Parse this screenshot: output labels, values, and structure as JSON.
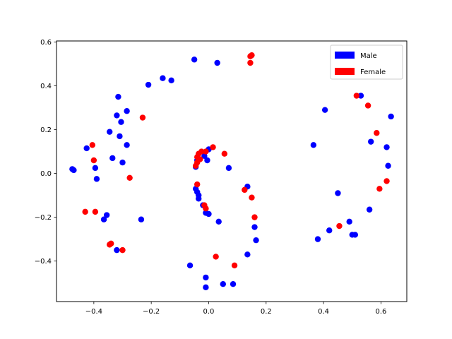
{
  "chart_data": {
    "type": "scatter",
    "title": "",
    "xlabel": "",
    "ylabel": "",
    "xlim": [
      -0.53,
      0.69
    ],
    "ylim": [
      -0.585,
      0.605
    ],
    "xticks": [
      -0.4,
      -0.2,
      0.0,
      0.2,
      0.4,
      0.6
    ],
    "xtick_labels": [
      "−0.4",
      "−0.2",
      "0.0",
      "0.2",
      "0.4",
      "0.6"
    ],
    "yticks": [
      -0.4,
      -0.2,
      0.0,
      0.2,
      0.4,
      0.6
    ],
    "ytick_labels": [
      "−0.4",
      "−0.2",
      "0.0",
      "0.2",
      "0.4",
      "0.6"
    ],
    "grid": false,
    "legend_position": "top-right",
    "series": [
      {
        "name": "Male",
        "color": "#0000ff",
        "points": [
          [
            -0.05,
            0.52
          ],
          [
            0.03,
            0.505
          ],
          [
            -0.16,
            0.435
          ],
          [
            -0.13,
            0.425
          ],
          [
            -0.21,
            0.405
          ],
          [
            -0.315,
            0.35
          ],
          [
            -0.285,
            0.285
          ],
          [
            -0.32,
            0.265
          ],
          [
            -0.305,
            0.235
          ],
          [
            -0.345,
            0.19
          ],
          [
            -0.31,
            0.17
          ],
          [
            -0.285,
            0.13
          ],
          [
            -0.425,
            0.115
          ],
          [
            -0.335,
            0.07
          ],
          [
            -0.3,
            0.05
          ],
          [
            -0.475,
            0.02
          ],
          [
            -0.47,
            0.015
          ],
          [
            -0.395,
            0.025
          ],
          [
            -0.39,
            -0.025
          ],
          [
            -0.355,
            -0.19
          ],
          [
            -0.365,
            -0.21
          ],
          [
            -0.235,
            -0.21
          ],
          [
            -0.32,
            -0.35
          ],
          [
            0.0,
            0.11
          ],
          [
            -0.015,
            0.08
          ],
          [
            -0.005,
            0.06
          ],
          [
            -0.04,
            0.06
          ],
          [
            -0.045,
            0.03
          ],
          [
            0.07,
            0.025
          ],
          [
            -0.045,
            -0.07
          ],
          [
            -0.04,
            -0.085
          ],
          [
            -0.035,
            -0.1
          ],
          [
            -0.035,
            -0.115
          ],
          [
            -0.02,
            -0.145
          ],
          [
            -0.01,
            -0.18
          ],
          [
            0.0,
            -0.185
          ],
          [
            0.035,
            -0.22
          ],
          [
            0.135,
            -0.06
          ],
          [
            0.16,
            -0.245
          ],
          [
            0.165,
            -0.305
          ],
          [
            0.135,
            -0.37
          ],
          [
            -0.065,
            -0.42
          ],
          [
            -0.01,
            -0.475
          ],
          [
            -0.01,
            -0.52
          ],
          [
            0.05,
            -0.505
          ],
          [
            0.085,
            -0.505
          ],
          [
            0.405,
            0.29
          ],
          [
            0.365,
            0.13
          ],
          [
            0.53,
            0.355
          ],
          [
            0.635,
            0.26
          ],
          [
            0.565,
            0.145
          ],
          [
            0.62,
            0.12
          ],
          [
            0.625,
            0.035
          ],
          [
            0.45,
            -0.09
          ],
          [
            0.56,
            -0.165
          ],
          [
            0.42,
            -0.26
          ],
          [
            0.38,
            -0.3
          ],
          [
            0.49,
            -0.22
          ],
          [
            0.5,
            -0.28
          ],
          [
            0.51,
            -0.28
          ]
        ]
      },
      {
        "name": "Female",
        "color": "#ff0000",
        "points": [
          [
            0.145,
            0.535
          ],
          [
            0.15,
            0.54
          ],
          [
            0.145,
            0.505
          ],
          [
            -0.23,
            0.255
          ],
          [
            -0.405,
            0.13
          ],
          [
            -0.4,
            0.06
          ],
          [
            -0.275,
            -0.02
          ],
          [
            -0.43,
            -0.175
          ],
          [
            -0.395,
            -0.175
          ],
          [
            -0.345,
            -0.325
          ],
          [
            -0.34,
            -0.32
          ],
          [
            -0.3,
            -0.35
          ],
          [
            0.015,
            0.12
          ],
          [
            -0.01,
            0.1
          ],
          [
            -0.025,
            0.1
          ],
          [
            -0.035,
            0.09
          ],
          [
            -0.04,
            0.075
          ],
          [
            -0.03,
            0.065
          ],
          [
            -0.04,
            0.05
          ],
          [
            -0.045,
            0.035
          ],
          [
            0.055,
            0.09
          ],
          [
            -0.04,
            -0.05
          ],
          [
            -0.015,
            -0.145
          ],
          [
            -0.01,
            -0.16
          ],
          [
            0.125,
            -0.075
          ],
          [
            0.15,
            -0.11
          ],
          [
            0.16,
            -0.2
          ],
          [
            0.025,
            -0.38
          ],
          [
            0.09,
            -0.42
          ],
          [
            0.515,
            0.355
          ],
          [
            0.555,
            0.31
          ],
          [
            0.585,
            0.185
          ],
          [
            0.62,
            -0.035
          ],
          [
            0.595,
            -0.07
          ],
          [
            0.455,
            -0.24
          ]
        ]
      }
    ]
  }
}
